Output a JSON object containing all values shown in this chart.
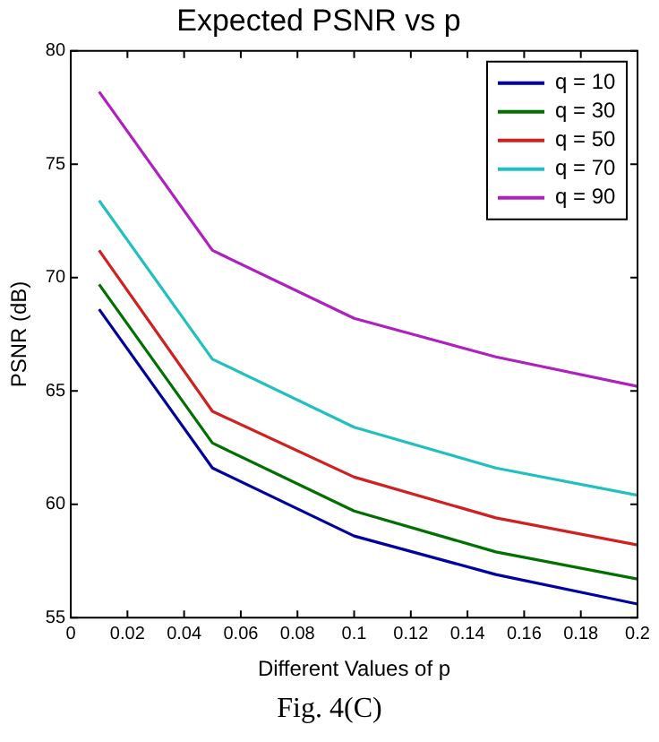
{
  "chart_data": {
    "type": "line",
    "title": "Expected PSNR vs p",
    "xlabel": "Different Values of p",
    "ylabel": "PSNR (dB)",
    "x": [
      0.01,
      0.05,
      0.1,
      0.15,
      0.2
    ],
    "series": [
      {
        "name": "q = 10",
        "color": "#0000a0",
        "values": [
          68.6,
          61.6,
          58.6,
          56.9,
          55.6
        ]
      },
      {
        "name": "q = 30",
        "color": "#007000",
        "values": [
          69.7,
          62.7,
          59.7,
          57.9,
          56.7
        ]
      },
      {
        "name": "q = 50",
        "color": "#d02020",
        "values": [
          71.2,
          64.1,
          61.2,
          59.4,
          58.2
        ]
      },
      {
        "name": "q = 70",
        "color": "#20c0c0",
        "values": [
          73.4,
          66.4,
          63.4,
          61.6,
          60.4
        ]
      },
      {
        "name": "q = 90",
        "color": "#b020c0",
        "values": [
          78.2,
          71.2,
          68.2,
          66.5,
          65.2
        ]
      }
    ],
    "xlim": [
      0,
      0.2
    ],
    "xticks": [
      0,
      0.02,
      0.04,
      0.06,
      0.08,
      0.1,
      0.12,
      0.14,
      0.16,
      0.18,
      0.2
    ],
    "ylim": [
      55,
      80
    ],
    "yticks": [
      55,
      60,
      65,
      70,
      75,
      80
    ],
    "grid": false,
    "legend": "top right",
    "marker": "none",
    "line_style": "solid",
    "annotations": [
      "Fig. 4(C)"
    ]
  }
}
